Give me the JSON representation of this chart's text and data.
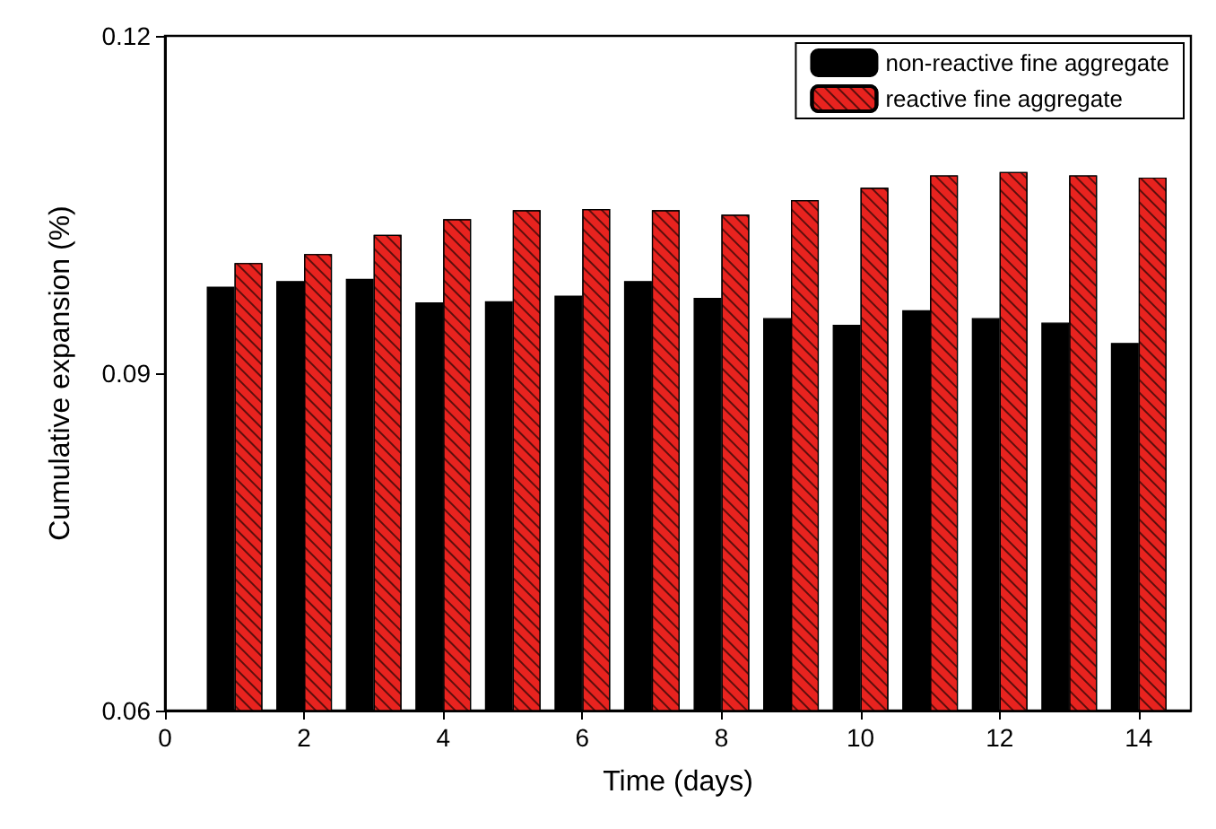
{
  "chart_data": {
    "type": "bar",
    "xlabel": "Time (days)",
    "ylabel": "Cumulative expansion (%)",
    "x": [
      1,
      2,
      3,
      4,
      5,
      6,
      7,
      8,
      9,
      10,
      11,
      12,
      13,
      14
    ],
    "series": [
      {
        "name": "non-reactive fine aggregate",
        "color": "#000000",
        "values": [
          0.0977,
          0.0982,
          0.0984,
          0.0963,
          0.0964,
          0.0969,
          0.0982,
          0.0967,
          0.0949,
          0.0943,
          0.0956,
          0.0949,
          0.0945,
          0.0927
        ]
      },
      {
        "name": "reactive fine aggregate",
        "color": "#e8231f",
        "values": [
          0.0998,
          0.1006,
          0.1023,
          0.1037,
          0.1045,
          0.1046,
          0.1045,
          0.1041,
          0.1054,
          0.1065,
          0.1076,
          0.1079,
          0.1076,
          0.1074
        ]
      }
    ],
    "xlim": [
      0,
      14.75
    ],
    "xticks": [
      0,
      2,
      4,
      6,
      8,
      10,
      12,
      14
    ],
    "ylim": [
      0.06,
      0.12
    ],
    "yticks": [
      0.06,
      0.09,
      0.12
    ],
    "grid": false,
    "legend": "top right"
  }
}
